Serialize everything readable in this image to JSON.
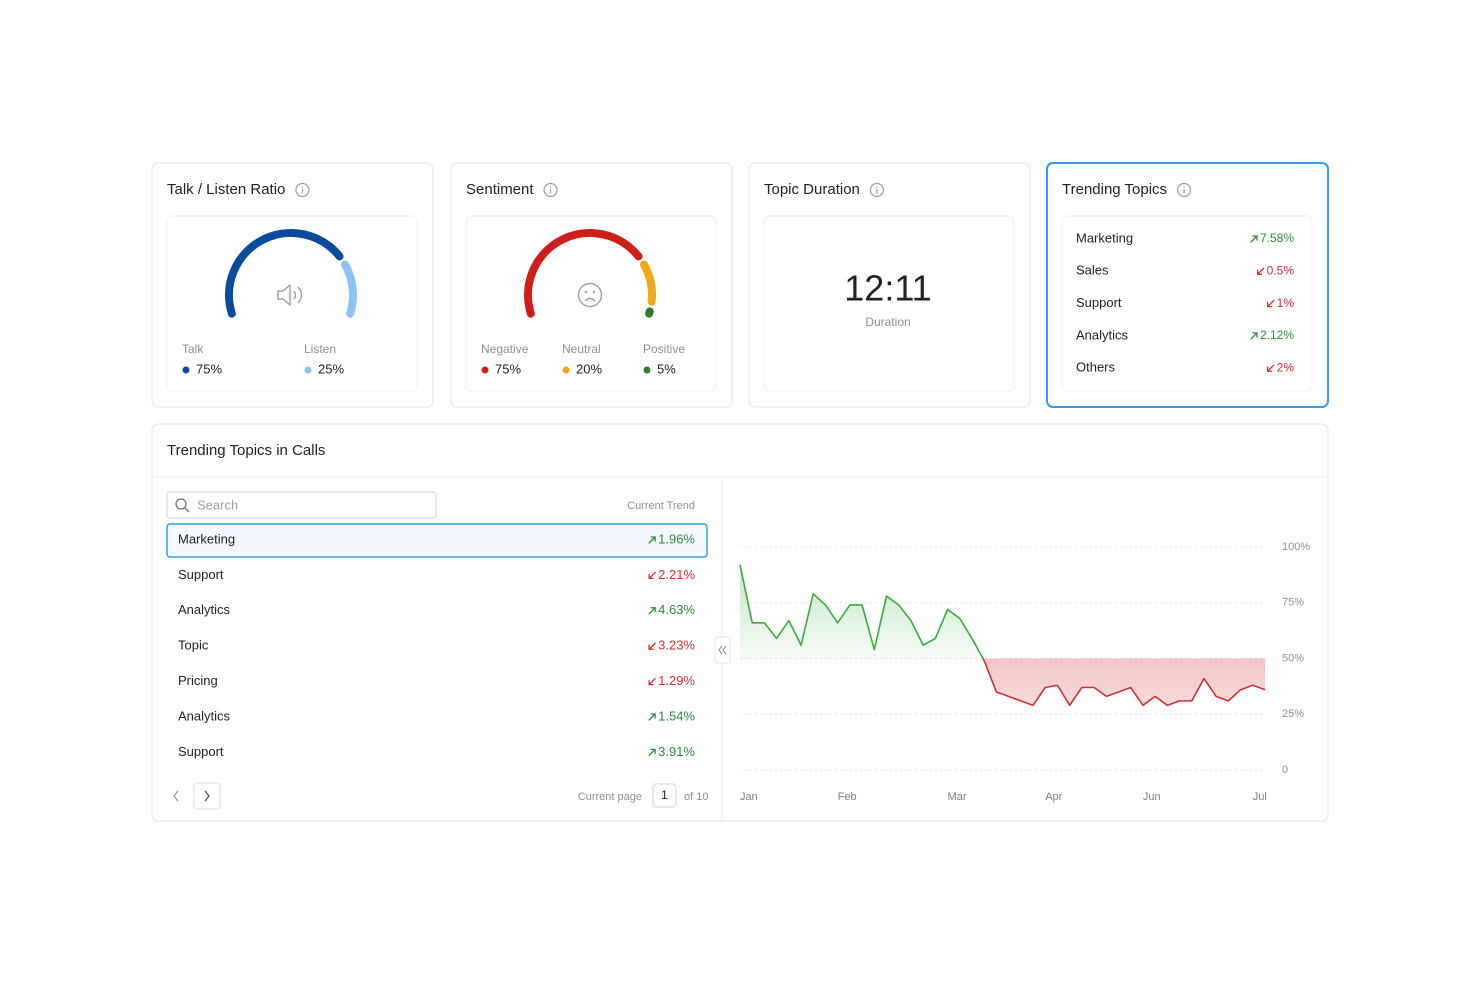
{
  "cards": [
    {
      "title": "Talk / Listen Ratio",
      "chart_data": {
        "type": "gauge",
        "categories": [
          "Talk",
          "Listen"
        ],
        "values": [
          75,
          25
        ],
        "value_labels": [
          "75%",
          "25%"
        ],
        "colors": [
          "#0b4a9c",
          "#8ec3f5"
        ]
      }
    },
    {
      "title": "Sentiment",
      "chart_data": {
        "type": "gauge",
        "categories": [
          "Negative",
          "Neutral",
          "Positive"
        ],
        "values": [
          75,
          20,
          5
        ],
        "value_labels": [
          "75%",
          "20%",
          "5%"
        ],
        "colors": [
          "#cc1f1a",
          "#f0a818",
          "#2e7d32"
        ]
      }
    },
    {
      "title": "Topic Duration",
      "value": "12:11",
      "caption": "Duration"
    },
    {
      "title": "Trending Topics",
      "selected": true,
      "items": [
        {
          "name": "Marketing",
          "trend": "7.58%",
          "direction": "up"
        },
        {
          "name": "Sales",
          "trend": "0.5%",
          "direction": "down"
        },
        {
          "name": "Support",
          "trend": "1%",
          "direction": "down"
        },
        {
          "name": "Analytics",
          "trend": "2.12%",
          "direction": "up"
        },
        {
          "name": "Others",
          "trend": "2%",
          "direction": "down"
        }
      ]
    }
  ],
  "calls": {
    "title": "Trending Topics in Calls",
    "search_placeholder": "Search",
    "column": "Current Trend",
    "selected_row": 0,
    "rows": [
      {
        "name": "Marketing",
        "trend": "1.96%",
        "direction": "up"
      },
      {
        "name": "Support",
        "trend": "2.21%",
        "direction": "down"
      },
      {
        "name": "Analytics",
        "trend": "4.63%",
        "direction": "up"
      },
      {
        "name": "Topic",
        "trend": "3.23%",
        "direction": "down"
      },
      {
        "name": "Pricing",
        "trend": "1.29%",
        "direction": "down"
      },
      {
        "name": "Analytics",
        "trend": "1.54%",
        "direction": "up"
      },
      {
        "name": "Support",
        "trend": "3.91%",
        "direction": "up"
      }
    ],
    "pagination": {
      "label": "Current page",
      "page": 1,
      "total": "of 10"
    },
    "chart_data": {
      "type": "area",
      "categories": [
        "Jan",
        null,
        null,
        null,
        null,
        null,
        null,
        null,
        "Feb",
        null,
        null,
        null,
        null,
        null,
        null,
        null,
        null,
        "Mar",
        null,
        null,
        null,
        null,
        null,
        null,
        null,
        "Apr",
        null,
        null,
        null,
        null,
        null,
        null,
        null,
        "Jun",
        null,
        null,
        null,
        null,
        null,
        null,
        null,
        null,
        "Jul",
        null
      ],
      "series": [
        {
          "values": [
            92,
            66,
            66,
            59,
            67,
            56,
            79,
            74,
            66,
            74,
            74,
            54,
            78,
            74,
            67,
            56,
            59,
            72,
            68,
            59,
            49,
            35,
            33,
            31,
            29,
            37,
            38,
            29,
            37,
            37,
            33,
            35,
            37,
            29,
            33,
            29,
            31,
            31,
            41,
            33,
            31,
            36,
            38,
            36
          ],
          "color_above": "#3cab3c",
          "color_below": "#d32f2f"
        }
      ],
      "baseline": 50,
      "ylim": [
        0,
        100
      ],
      "yticks": [
        0,
        {
          "value": 25,
          "label": "25%"
        },
        {
          "value": 50,
          "label": "50%"
        },
        {
          "value": 75,
          "label": "75%"
        },
        {
          "value": 100,
          "label": "100%"
        }
      ],
      "grid": true
    }
  }
}
